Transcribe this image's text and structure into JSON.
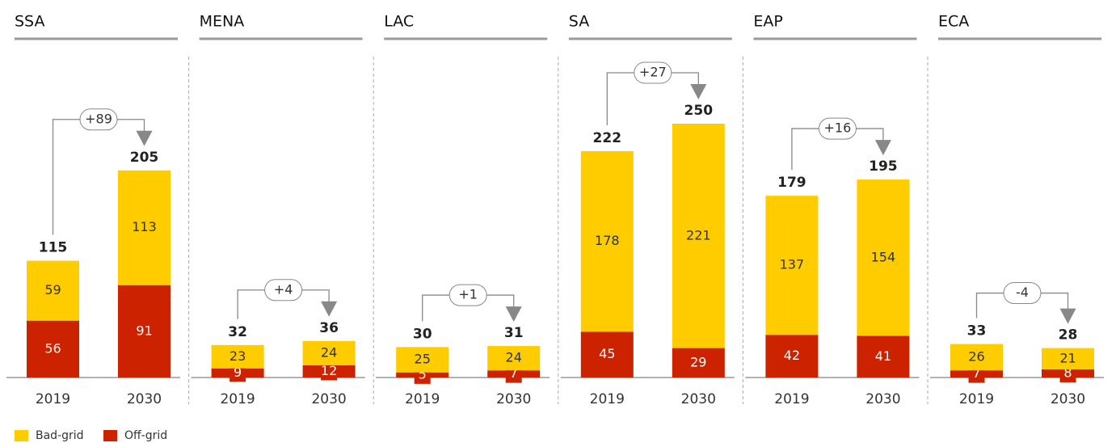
{
  "chart_data": {
    "type": "bar",
    "stacked": true,
    "series": [
      {
        "name": "Bad-grid",
        "color": "#ffcc00"
      },
      {
        "name": "Off-grid",
        "color": "#cc2200"
      }
    ],
    "panels": [
      {
        "title": "SSA",
        "categories": [
          "2019",
          "2030"
        ],
        "values": [
          [
            59,
            113
          ],
          [
            56,
            91
          ]
        ],
        "totals": [
          115,
          205
        ],
        "annotation": "+89"
      },
      {
        "title": "MENA",
        "categories": [
          "2019",
          "2030"
        ],
        "values": [
          [
            23,
            24
          ],
          [
            9,
            12
          ]
        ],
        "totals": [
          32,
          36
        ],
        "annotation": "+4"
      },
      {
        "title": "LAC",
        "categories": [
          "2019",
          "2030"
        ],
        "values": [
          [
            25,
            24
          ],
          [
            5,
            7
          ]
        ],
        "totals": [
          30,
          31
        ],
        "annotation": "+1"
      },
      {
        "title": "SA",
        "categories": [
          "2019",
          "2030"
        ],
        "values": [
          [
            178,
            221
          ],
          [
            45,
            29
          ]
        ],
        "totals": [
          222,
          250
        ],
        "annotation": "+27"
      },
      {
        "title": "EAP",
        "categories": [
          "2019",
          "2030"
        ],
        "values": [
          [
            137,
            154
          ],
          [
            42,
            41
          ]
        ],
        "totals": [
          179,
          195
        ],
        "annotation": "+16"
      },
      {
        "title": "ECA",
        "categories": [
          "2019",
          "2030"
        ],
        "values": [
          [
            26,
            21
          ],
          [
            7,
            8
          ]
        ],
        "totals": [
          33,
          28
        ],
        "annotation": "-4"
      }
    ]
  }
}
